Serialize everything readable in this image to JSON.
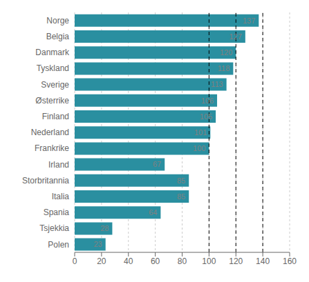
{
  "chart_data": {
    "type": "bar",
    "orientation": "horizontal",
    "categories": [
      "Polen",
      "Tsjekkia",
      "Spania",
      "Italia",
      "Storbritannia",
      "Irland",
      "Frankrike",
      "Nederland",
      "Finland",
      "Østerrike",
      "Sverige",
      "Tyskland",
      "Danmark",
      "Belgia",
      "Norge"
    ],
    "values": [
      23,
      28,
      64,
      85,
      85,
      67,
      100,
      101,
      105,
      106,
      113,
      118,
      120,
      127,
      137
    ],
    "color": "#2a8fa0",
    "xlim": [
      0,
      160
    ],
    "xticks": [
      0,
      20,
      40,
      60,
      80,
      100,
      120,
      140,
      160
    ],
    "grid": true,
    "data_labels": true,
    "vlines": [
      100,
      120,
      140
    ]
  }
}
